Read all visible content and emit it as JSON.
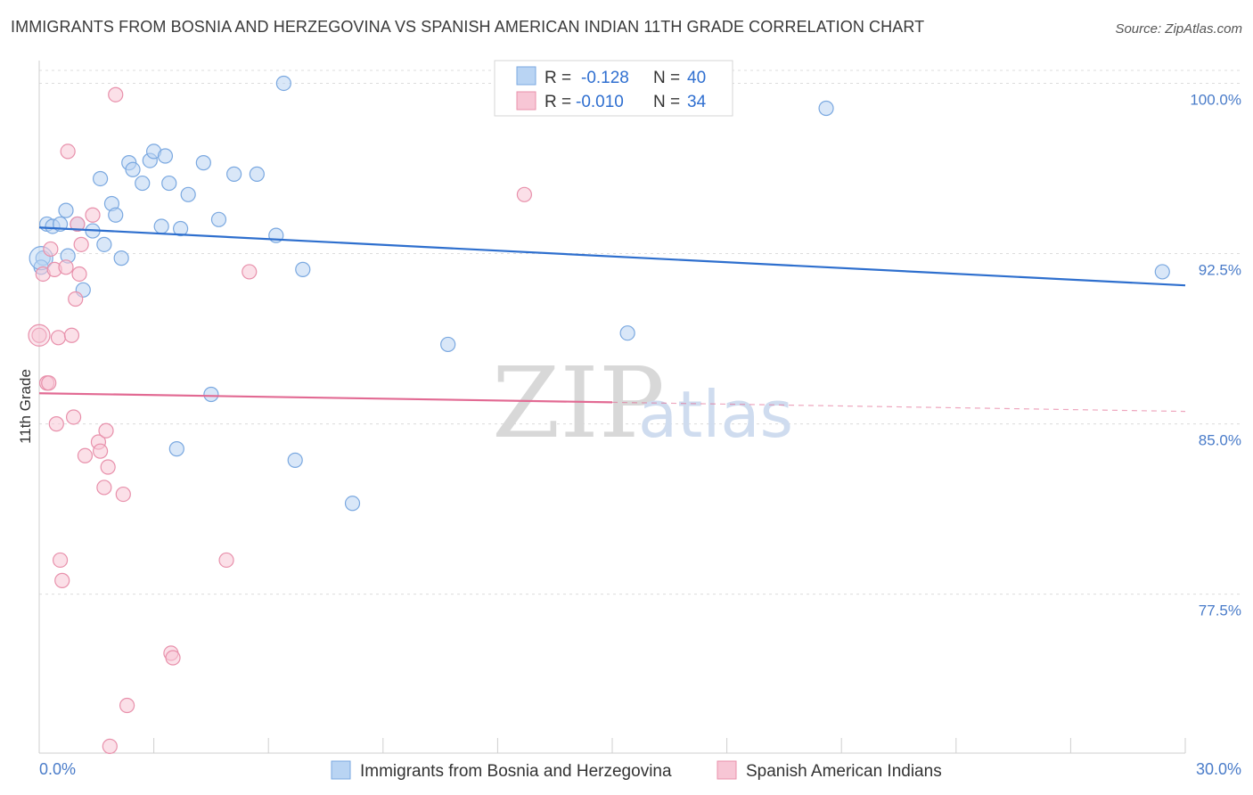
{
  "header": {
    "title": "IMMIGRANTS FROM BOSNIA AND HERZEGOVINA VS SPANISH AMERICAN INDIAN 11TH GRADE CORRELATION CHART",
    "source": "Source: ZipAtlas.com"
  },
  "watermark": {
    "zip": "ZIP",
    "atlas": "atlas"
  },
  "legend": {
    "rows": [
      {
        "r_label": "R =",
        "r_value": "-0.128",
        "n_label": "N =",
        "n_value": "40"
      },
      {
        "r_label": "R =",
        "r_value": "-0.010",
        "n_label": "N =",
        "n_value": "34"
      }
    ]
  },
  "colors": {
    "blue_fill": "#b9d4f3",
    "blue_stroke": "#7aa8e0",
    "blue_line": "#2e6fce",
    "pink_fill": "#f7c6d5",
    "pink_stroke": "#e890ab",
    "pink_line": "#e26a93"
  },
  "chart_data": {
    "type": "scatter",
    "title": "IMMIGRANTS FROM BOSNIA AND HERZEGOVINA VS SPANISH AMERICAN INDIAN 11TH GRADE CORRELATION CHART",
    "xlabel": "",
    "ylabel": "11th Grade",
    "xlim": [
      0,
      30
    ],
    "ylim": [
      70.5,
      101
    ],
    "x_tick_labels": [
      "0.0%",
      "30.0%"
    ],
    "y_ticks": [
      100.0,
      92.5,
      85.0,
      77.5
    ],
    "y_tick_labels": [
      "100.0%",
      "92.5%",
      "85.0%",
      "77.5%"
    ],
    "legend_position": "top-center",
    "series": [
      {
        "name": "Immigrants from Bosnia and Herzegovina",
        "color": "blue",
        "r": -0.128,
        "n": 40,
        "trend": {
          "x": [
            0,
            30
          ],
          "y": [
            93.65,
            91.1
          ]
        },
        "points": [
          [
            0.1,
            92.3
          ],
          [
            0.2,
            93.8
          ],
          [
            0.35,
            93.7
          ],
          [
            0.55,
            93.8
          ],
          [
            0.7,
            94.4
          ],
          [
            0.75,
            92.4
          ],
          [
            1.0,
            93.8
          ],
          [
            1.15,
            90.9
          ],
          [
            1.4,
            93.5
          ],
          [
            1.6,
            95.8
          ],
          [
            1.7,
            92.9
          ],
          [
            1.9,
            94.7
          ],
          [
            2.0,
            94.2
          ],
          [
            2.15,
            92.3
          ],
          [
            2.35,
            96.5
          ],
          [
            2.45,
            96.2
          ],
          [
            2.7,
            95.6
          ],
          [
            2.9,
            96.6
          ],
          [
            3.0,
            97.0
          ],
          [
            3.2,
            93.7
          ],
          [
            3.3,
            96.8
          ],
          [
            3.4,
            95.6
          ],
          [
            3.6,
            83.9
          ],
          [
            3.7,
            93.6
          ],
          [
            3.9,
            95.1
          ],
          [
            4.3,
            96.5
          ],
          [
            4.5,
            86.3
          ],
          [
            4.7,
            94.0
          ],
          [
            5.1,
            96.0
          ],
          [
            5.7,
            96.0
          ],
          [
            6.2,
            93.3
          ],
          [
            6.4,
            100.0
          ],
          [
            6.7,
            83.4
          ],
          [
            6.9,
            91.8
          ],
          [
            8.2,
            81.5
          ],
          [
            10.7,
            88.5
          ],
          [
            15.4,
            89.0
          ],
          [
            20.6,
            98.9
          ],
          [
            29.4,
            91.7
          ],
          [
            0.05,
            91.9
          ]
        ]
      },
      {
        "name": "Spanish American Indians",
        "color": "pink",
        "r": -0.01,
        "n": 34,
        "trend": {
          "x": [
            0,
            15
          ],
          "y": [
            86.35,
            85.95
          ]
        },
        "trend_dashed": {
          "x": [
            15,
            30
          ],
          "y": [
            85.95,
            85.55
          ]
        },
        "points": [
          [
            0.0,
            88.9
          ],
          [
            0.1,
            91.6
          ],
          [
            0.2,
            86.8
          ],
          [
            0.25,
            86.8
          ],
          [
            0.3,
            92.7
          ],
          [
            0.4,
            91.8
          ],
          [
            0.45,
            85.0
          ],
          [
            0.5,
            88.8
          ],
          [
            0.55,
            79.0
          ],
          [
            0.6,
            78.1
          ],
          [
            0.7,
            91.9
          ],
          [
            0.75,
            97.0
          ],
          [
            0.85,
            88.9
          ],
          [
            0.9,
            85.3
          ],
          [
            0.95,
            90.5
          ],
          [
            1.0,
            93.8
          ],
          [
            1.05,
            91.6
          ],
          [
            1.1,
            92.9
          ],
          [
            1.2,
            83.6
          ],
          [
            1.4,
            94.2
          ],
          [
            1.55,
            84.2
          ],
          [
            1.6,
            83.8
          ],
          [
            1.7,
            82.2
          ],
          [
            1.75,
            84.7
          ],
          [
            1.8,
            83.1
          ],
          [
            1.85,
            70.8
          ],
          [
            2.0,
            99.5
          ],
          [
            2.2,
            81.9
          ],
          [
            2.3,
            72.6
          ],
          [
            3.45,
            74.9
          ],
          [
            3.5,
            74.7
          ],
          [
            4.9,
            79.0
          ],
          [
            5.5,
            91.7
          ],
          [
            12.7,
            95.1
          ]
        ]
      }
    ]
  },
  "bottom_legend": {
    "items": [
      "Immigrants from Bosnia and Herzegovina",
      "Spanish American Indians"
    ]
  }
}
